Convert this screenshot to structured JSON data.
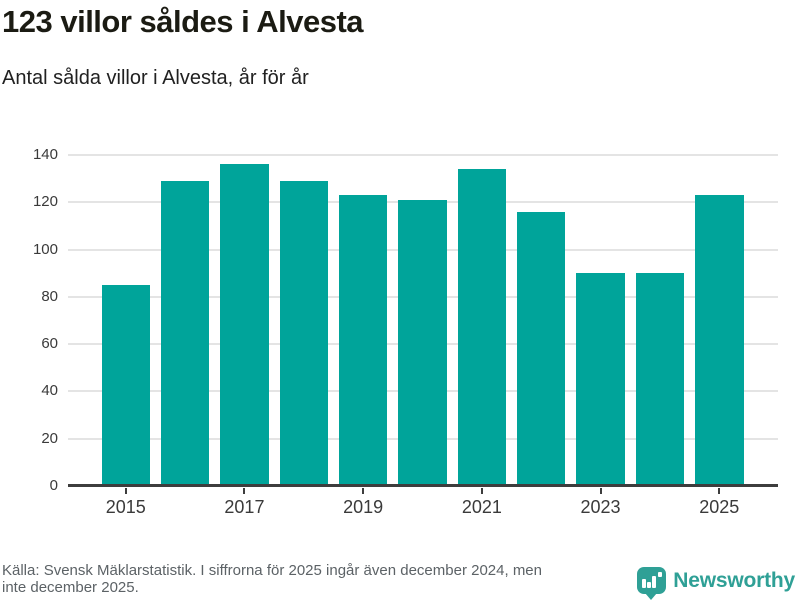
{
  "header": {
    "title": "123 villor såldes i Alvesta",
    "subtitle": "Antal sålda villor i Alvesta, år för år"
  },
  "chart_data": {
    "type": "bar",
    "title": "123 villor såldes i Alvesta",
    "subtitle": "Antal sålda villor i Alvesta, år för år",
    "categories": [
      "2015",
      "2016",
      "2017",
      "2018",
      "2019",
      "2020",
      "2021",
      "2022",
      "2023",
      "2024",
      "2025"
    ],
    "values": [
      85,
      129,
      136,
      129,
      123,
      121,
      134,
      116,
      90,
      90,
      123
    ],
    "xlabel": "",
    "ylabel": "",
    "ylim": [
      0,
      140
    ],
    "yticks": [
      0,
      20,
      40,
      60,
      80,
      100,
      120,
      140
    ],
    "xticks": [
      "2015",
      "2017",
      "2019",
      "2021",
      "2023",
      "2025"
    ],
    "grid": true,
    "legend": false,
    "bar_color": "#00a49a",
    "gridline_color": "#e4e4e4",
    "axis_color": "#3d3d3d"
  },
  "footer": {
    "source_line1": "Källa: Svensk Mäklarstatistik. I siffrorna för 2025 ingår även december 2024, men",
    "source_line2": "inte december 2025.",
    "logo_text": "Newsworthy",
    "logo_color": "#2fa096"
  }
}
